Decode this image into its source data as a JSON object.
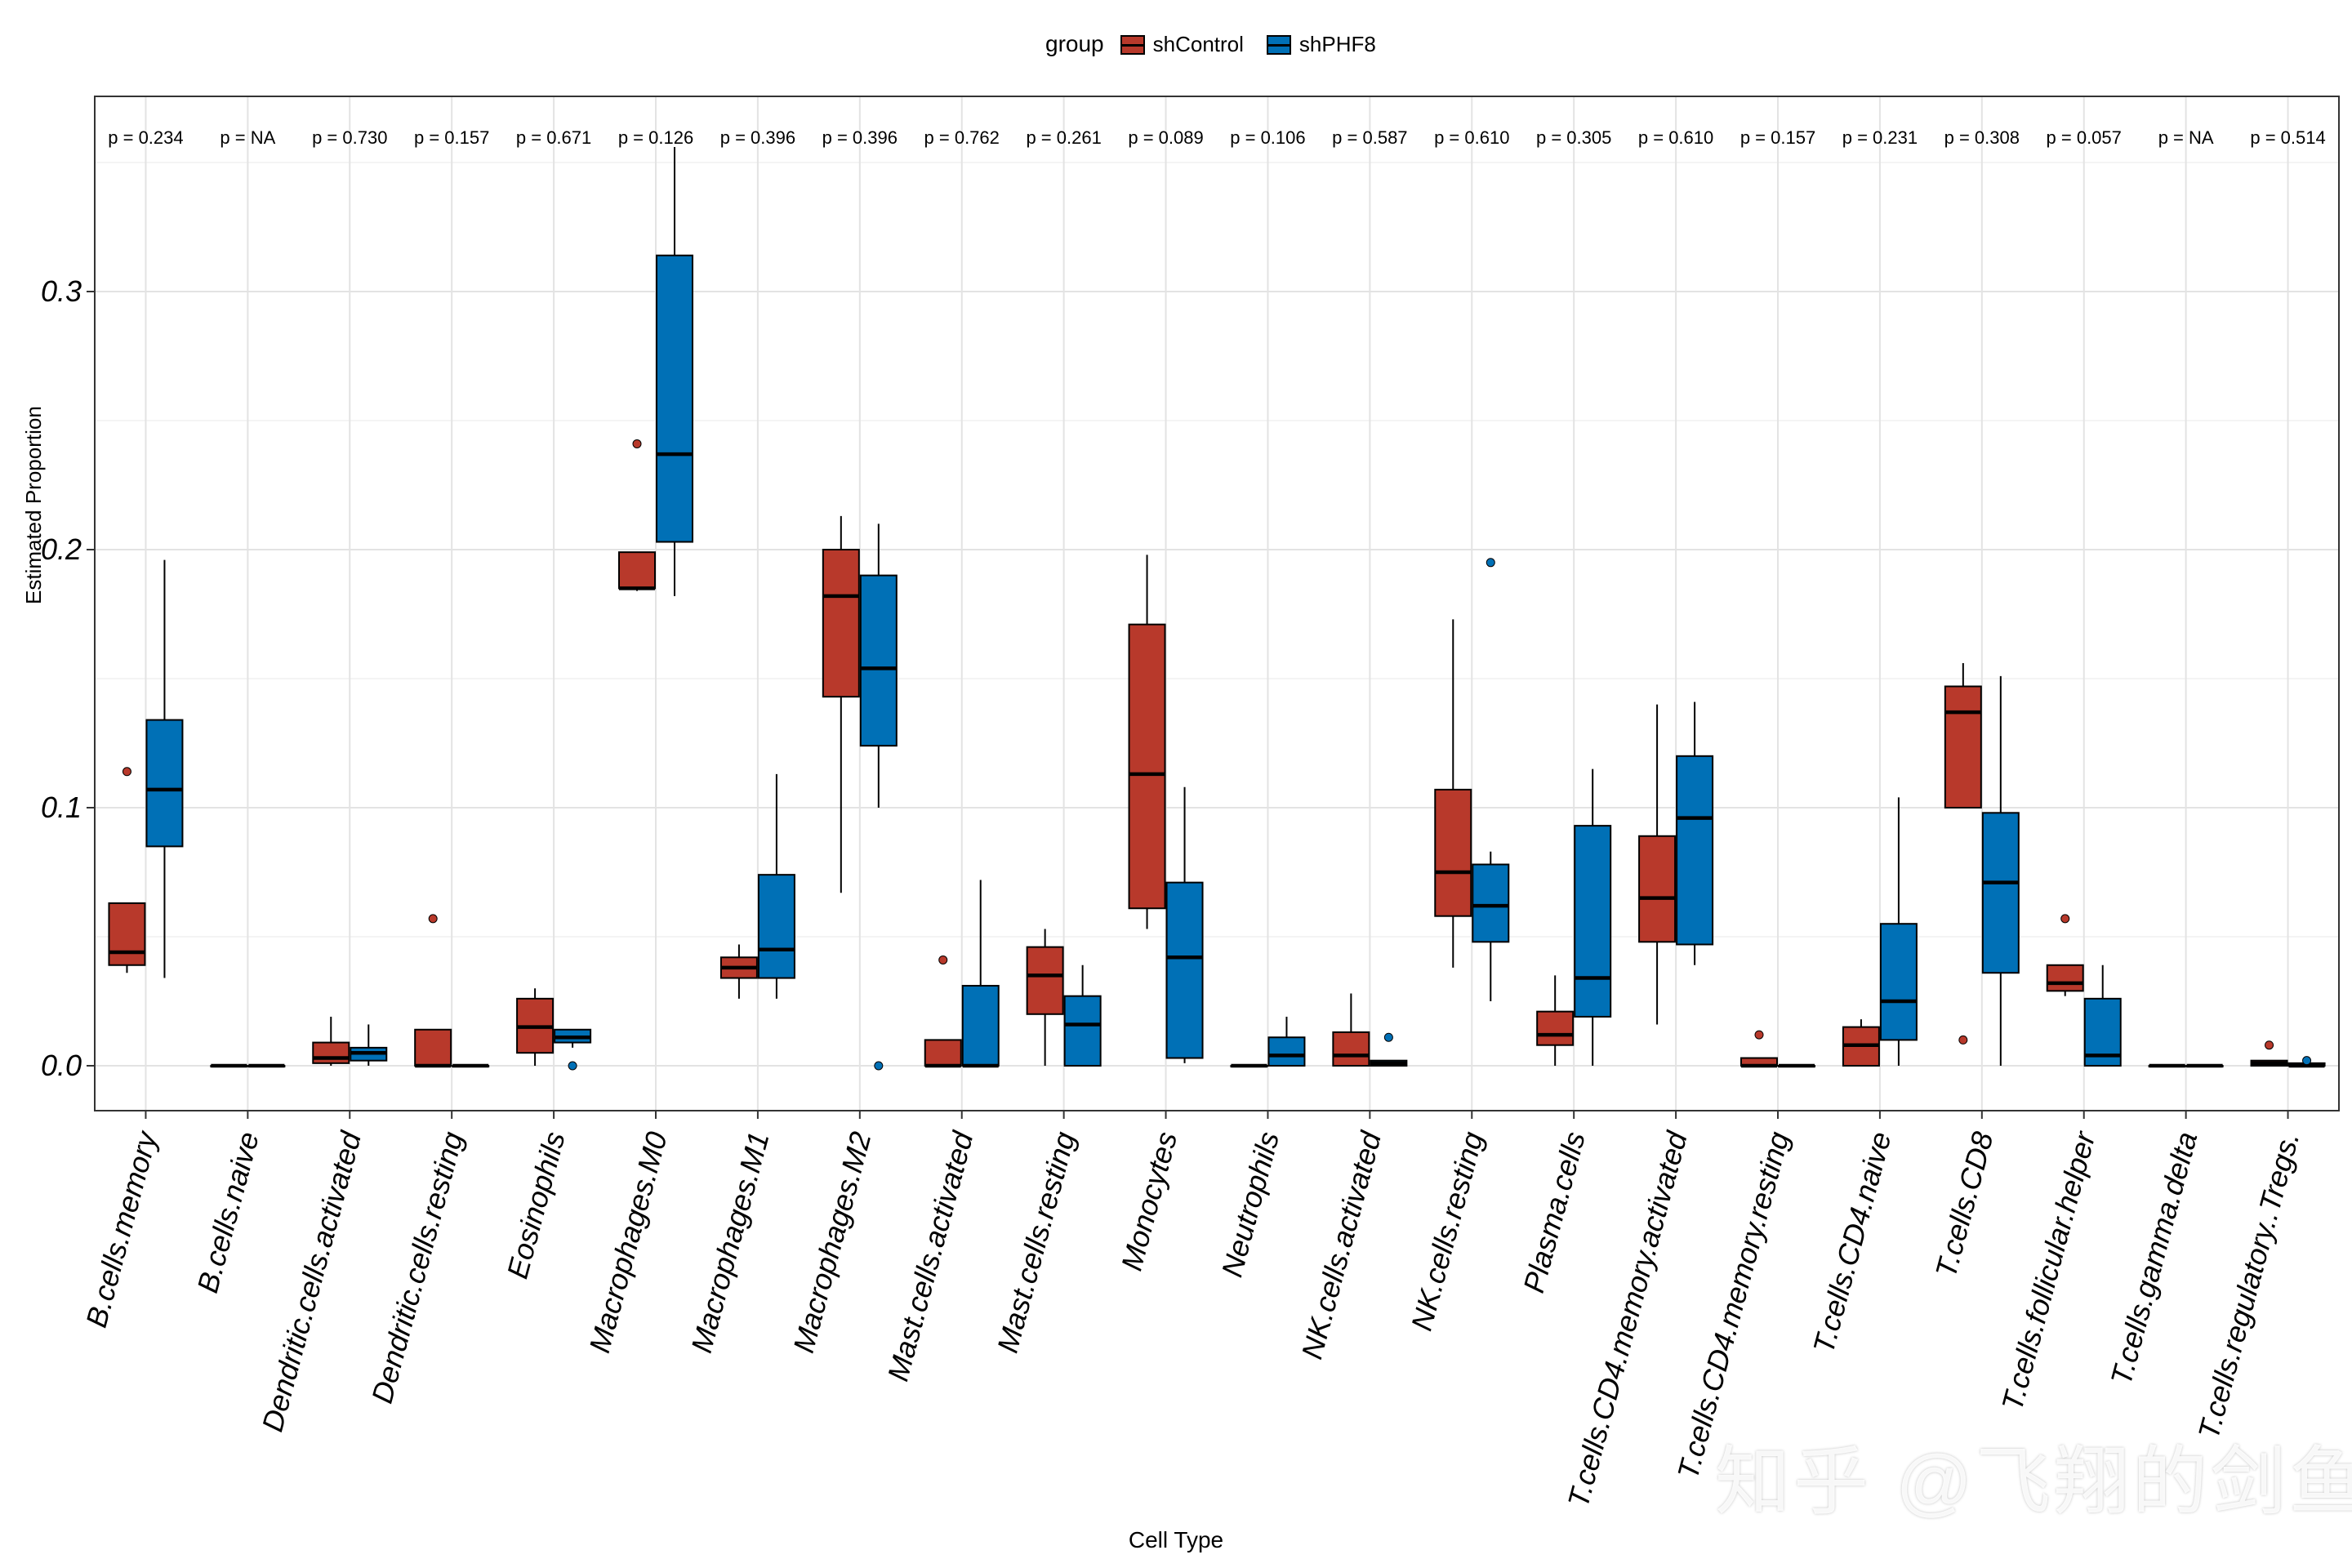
{
  "legend": {
    "title": "group",
    "items": [
      {
        "label": "shControl",
        "color": "#B8392B"
      },
      {
        "label": "shPHF8",
        "color": "#0070B6"
      }
    ]
  },
  "watermark": "知乎 @飞翔的剑鱼",
  "chart_data": {
    "type": "boxplot",
    "xlabel": "Cell Type",
    "ylabel": "Estimated Proportion",
    "ylim": [
      -0.017,
      0.37
    ],
    "yticks": [
      0.0,
      0.1,
      0.2,
      0.3
    ],
    "ytick_labels": [
      "0.0",
      "0.1",
      "0.2",
      "0.3"
    ],
    "grid": true,
    "legend_position": "top",
    "series": [
      {
        "name": "shControl",
        "color": "#B8392B"
      },
      {
        "name": "shPHF8",
        "color": "#0070B6"
      }
    ],
    "categories": [
      {
        "label": "B.cells.memory",
        "p": "p = 0.234",
        "shControl": {
          "min": 0.036,
          "q1": 0.039,
          "median": 0.044,
          "q3": 0.063,
          "max": 0.063,
          "outliers": [
            0.114
          ]
        },
        "shPHF8": {
          "min": 0.034,
          "q1": 0.085,
          "median": 0.107,
          "q3": 0.134,
          "max": 0.196,
          "outliers": []
        }
      },
      {
        "label": "B.cells.naive",
        "p": "p = NA",
        "shControl": {
          "min": 0,
          "q1": 0,
          "median": 0,
          "q3": 0,
          "max": 0,
          "outliers": []
        },
        "shPHF8": {
          "min": 0,
          "q1": 0,
          "median": 0,
          "q3": 0,
          "max": 0,
          "outliers": []
        }
      },
      {
        "label": "Dendritic.cells.activated",
        "p": "p = 0.730",
        "shControl": {
          "min": 0,
          "q1": 0.001,
          "median": 0.003,
          "q3": 0.009,
          "max": 0.019,
          "outliers": []
        },
        "shPHF8": {
          "min": 0,
          "q1": 0.002,
          "median": 0.005,
          "q3": 0.007,
          "max": 0.016,
          "outliers": []
        }
      },
      {
        "label": "Dendritic.cells.resting",
        "p": "p = 0.157",
        "shControl": {
          "min": 0,
          "q1": 0,
          "median": 0,
          "q3": 0.014,
          "max": 0.014,
          "outliers": [
            0.057
          ]
        },
        "shPHF8": {
          "min": 0,
          "q1": 0,
          "median": 0,
          "q3": 0,
          "max": 0,
          "outliers": []
        }
      },
      {
        "label": "Eosinophils",
        "p": "p = 0.671",
        "shControl": {
          "min": 0,
          "q1": 0.005,
          "median": 0.015,
          "q3": 0.026,
          "max": 0.03,
          "outliers": []
        },
        "shPHF8": {
          "min": 0.007,
          "q1": 0.009,
          "median": 0.011,
          "q3": 0.014,
          "max": 0.014,
          "outliers": [
            0.0
          ]
        }
      },
      {
        "label": "Macrophages.M0",
        "p": "p = 0.126",
        "shControl": {
          "min": 0.184,
          "q1": 0.185,
          "median": 0.185,
          "q3": 0.199,
          "max": 0.199,
          "outliers": [
            0.241
          ]
        },
        "shPHF8": {
          "min": 0.182,
          "q1": 0.203,
          "median": 0.237,
          "q3": 0.314,
          "max": 0.356,
          "outliers": []
        }
      },
      {
        "label": "Macrophages.M1",
        "p": "p = 0.396",
        "shControl": {
          "min": 0.026,
          "q1": 0.034,
          "median": 0.038,
          "q3": 0.042,
          "max": 0.047,
          "outliers": []
        },
        "shPHF8": {
          "min": 0.026,
          "q1": 0.034,
          "median": 0.045,
          "q3": 0.074,
          "max": 0.113,
          "outliers": []
        }
      },
      {
        "label": "Macrophages.M2",
        "p": "p = 0.396",
        "shControl": {
          "min": 0.067,
          "q1": 0.143,
          "median": 0.182,
          "q3": 0.2,
          "max": 0.213,
          "outliers": []
        },
        "shPHF8": {
          "min": 0.1,
          "q1": 0.124,
          "median": 0.154,
          "q3": 0.19,
          "max": 0.21,
          "outliers": [
            0.0
          ]
        }
      },
      {
        "label": "Mast.cells.activated",
        "p": "p = 0.762",
        "shControl": {
          "min": 0,
          "q1": 0,
          "median": 0,
          "q3": 0.01,
          "max": 0.01,
          "outliers": [
            0.041
          ]
        },
        "shPHF8": {
          "min": 0,
          "q1": 0,
          "median": 0,
          "q3": 0.031,
          "max": 0.072,
          "outliers": []
        }
      },
      {
        "label": "Mast.cells.resting",
        "p": "p = 0.261",
        "shControl": {
          "min": 0,
          "q1": 0.02,
          "median": 0.035,
          "q3": 0.046,
          "max": 0.053,
          "outliers": []
        },
        "shPHF8": {
          "min": 0,
          "q1": 0,
          "median": 0.016,
          "q3": 0.027,
          "max": 0.039,
          "outliers": []
        }
      },
      {
        "label": "Monocytes",
        "p": "p = 0.089",
        "shControl": {
          "min": 0.053,
          "q1": 0.061,
          "median": 0.113,
          "q3": 0.171,
          "max": 0.198,
          "outliers": []
        },
        "shPHF8": {
          "min": 0.001,
          "q1": 0.003,
          "median": 0.042,
          "q3": 0.071,
          "max": 0.108,
          "outliers": []
        }
      },
      {
        "label": "Neutrophils",
        "p": "p = 0.106",
        "shControl": {
          "min": 0,
          "q1": 0,
          "median": 0,
          "q3": 0,
          "max": 0,
          "outliers": []
        },
        "shPHF8": {
          "min": 0,
          "q1": 0,
          "median": 0.004,
          "q3": 0.011,
          "max": 0.019,
          "outliers": []
        }
      },
      {
        "label": "NK.cells.activated",
        "p": "p = 0.587",
        "shControl": {
          "min": 0,
          "q1": 0,
          "median": 0.004,
          "q3": 0.013,
          "max": 0.028,
          "outliers": []
        },
        "shPHF8": {
          "min": 0,
          "q1": 0,
          "median": 0.001,
          "q3": 0.002,
          "max": 0.002,
          "outliers": [
            0.011
          ]
        }
      },
      {
        "label": "NK.cells.resting",
        "p": "p = 0.610",
        "shControl": {
          "min": 0.038,
          "q1": 0.058,
          "median": 0.075,
          "q3": 0.107,
          "max": 0.173,
          "outliers": []
        },
        "shPHF8": {
          "min": 0.025,
          "q1": 0.048,
          "median": 0.062,
          "q3": 0.078,
          "max": 0.083,
          "outliers": [
            0.195
          ]
        }
      },
      {
        "label": "Plasma.cells",
        "p": "p = 0.305",
        "shControl": {
          "min": 0,
          "q1": 0.008,
          "median": 0.012,
          "q3": 0.021,
          "max": 0.035,
          "outliers": []
        },
        "shPHF8": {
          "min": 0,
          "q1": 0.019,
          "median": 0.034,
          "q3": 0.093,
          "max": 0.115,
          "outliers": []
        }
      },
      {
        "label": "T.cells.CD4.memory.activated",
        "p": "p = 0.610",
        "shControl": {
          "min": 0.016,
          "q1": 0.048,
          "median": 0.065,
          "q3": 0.089,
          "max": 0.14,
          "outliers": []
        },
        "shPHF8": {
          "min": 0.039,
          "q1": 0.047,
          "median": 0.096,
          "q3": 0.12,
          "max": 0.141,
          "outliers": []
        }
      },
      {
        "label": "T.cells.CD4.memory.resting",
        "p": "p = 0.157",
        "shControl": {
          "min": 0,
          "q1": 0,
          "median": 0,
          "q3": 0.003,
          "max": 0.003,
          "outliers": [
            0.012
          ]
        },
        "shPHF8": {
          "min": 0,
          "q1": 0,
          "median": 0,
          "q3": 0,
          "max": 0,
          "outliers": []
        }
      },
      {
        "label": "T.cells.CD4.naive",
        "p": "p = 0.231",
        "shControl": {
          "min": 0,
          "q1": 0,
          "median": 0.008,
          "q3": 0.015,
          "max": 0.018,
          "outliers": []
        },
        "shPHF8": {
          "min": 0,
          "q1": 0.01,
          "median": 0.025,
          "q3": 0.055,
          "max": 0.104,
          "outliers": []
        }
      },
      {
        "label": "T.cells.CD8",
        "p": "p = 0.308",
        "shControl": {
          "min": 0.1,
          "q1": 0.1,
          "median": 0.137,
          "q3": 0.147,
          "max": 0.156,
          "outliers": [
            0.01
          ]
        },
        "shPHF8": {
          "min": 0,
          "q1": 0.036,
          "median": 0.071,
          "q3": 0.098,
          "max": 0.151,
          "outliers": []
        }
      },
      {
        "label": "T.cells.follicular.helper",
        "p": "p = 0.057",
        "shControl": {
          "min": 0.027,
          "q1": 0.029,
          "median": 0.032,
          "q3": 0.039,
          "max": 0.039,
          "outliers": [
            0.057
          ]
        },
        "shPHF8": {
          "min": 0,
          "q1": 0,
          "median": 0.004,
          "q3": 0.026,
          "max": 0.039,
          "outliers": []
        }
      },
      {
        "label": "T.cells.gamma.delta",
        "p": "p = NA",
        "shControl": {
          "min": 0,
          "q1": 0,
          "median": 0,
          "q3": 0,
          "max": 0,
          "outliers": []
        },
        "shPHF8": {
          "min": 0,
          "q1": 0,
          "median": 0,
          "q3": 0,
          "max": 0,
          "outliers": []
        }
      },
      {
        "label": "T.cells.regulatory..Tregs.",
        "p": "p = 0.514",
        "shControl": {
          "min": 0,
          "q1": 0,
          "median": 0.001,
          "q3": 0.002,
          "max": 0.002,
          "outliers": [
            0.008
          ]
        },
        "shPHF8": {
          "min": 0,
          "q1": 0,
          "median": 0,
          "q3": 0.001,
          "max": 0.001,
          "outliers": [
            0.002
          ]
        }
      }
    ]
  }
}
